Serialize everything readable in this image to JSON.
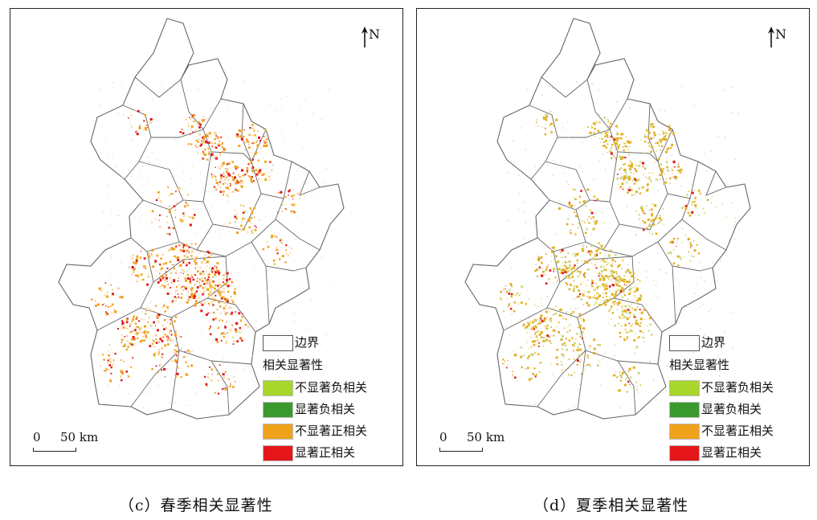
{
  "panels": [
    {
      "id": "c",
      "caption": "（c）春季相关显著性",
      "north_label": "N",
      "scale_zero": "0",
      "scale_label": "50 km",
      "legend": {
        "boundary_label": "边界",
        "title": "相关显著性",
        "items": [
          {
            "label": "不显著负相关",
            "color": "#a8d62a"
          },
          {
            "label": "显著负相关",
            "color": "#3a9a2e"
          },
          {
            "label": "不显著正相关",
            "color": "#f0a21c"
          },
          {
            "label": "显著正相关",
            "color": "#e4161a"
          }
        ]
      },
      "colors": {
        "outline": "#666666",
        "dots_primary": "#f0a21c",
        "dots_secondary": "#e4161a",
        "dots_minor": "#f5d9a0"
      }
    },
    {
      "id": "d",
      "caption": "（d）夏季相关显著性",
      "north_label": "N",
      "scale_zero": "0",
      "scale_label": "50 km",
      "legend": {
        "boundary_label": "边界",
        "title": "相关显著性",
        "items": [
          {
            "label": "不显著负相关",
            "color": "#a8d62a"
          },
          {
            "label": "显著负相关",
            "color": "#3a9a2e"
          },
          {
            "label": "不显著正相关",
            "color": "#f0a21c"
          },
          {
            "label": "显著正相关",
            "color": "#e4161a"
          }
        ]
      },
      "colors": {
        "outline": "#666666",
        "dots_primary": "#e2b020",
        "dots_secondary": "#e4161a",
        "dots_minor": "#c8dc8a"
      }
    }
  ]
}
